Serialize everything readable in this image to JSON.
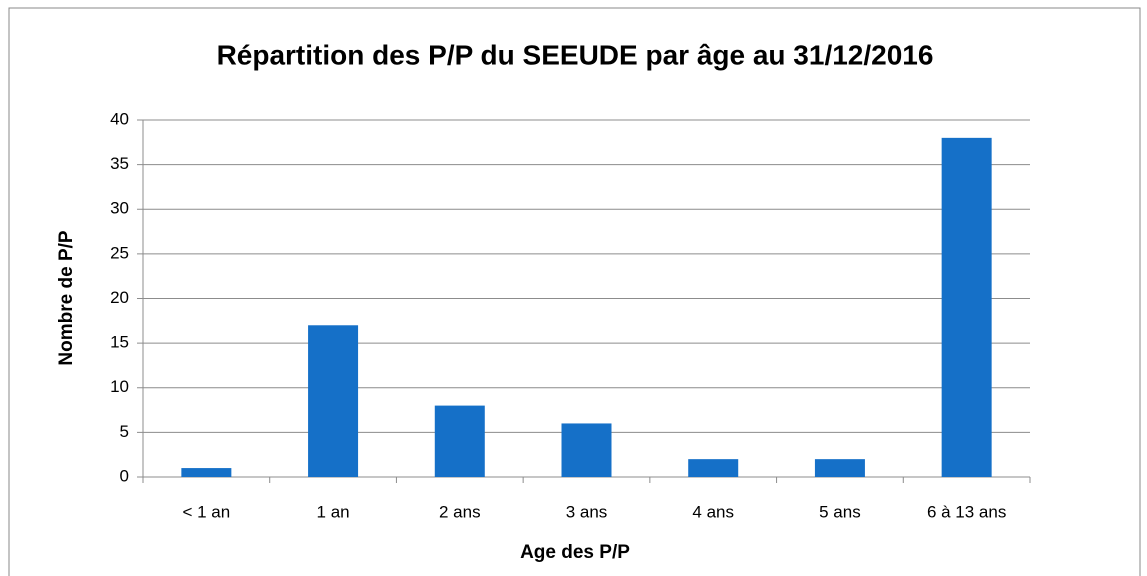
{
  "chart_data": {
    "type": "bar",
    "title": "Répartition des P/P du SEEUDE par âge au 31/12/2016",
    "x_label": "Age des P/P",
    "y_label": "Nombre de P/P",
    "categories": [
      "< 1 an",
      "1 an",
      "2 ans",
      "3 ans",
      "4 ans",
      "5 ans",
      "6 à 13 ans"
    ],
    "values": [
      1,
      17,
      8,
      6,
      2,
      2,
      38
    ],
    "color": "#1570c8",
    "ylim": [
      0,
      40
    ],
    "yticks": [
      0,
      5,
      10,
      15,
      20,
      25,
      30,
      35,
      40
    ],
    "grid": true
  }
}
